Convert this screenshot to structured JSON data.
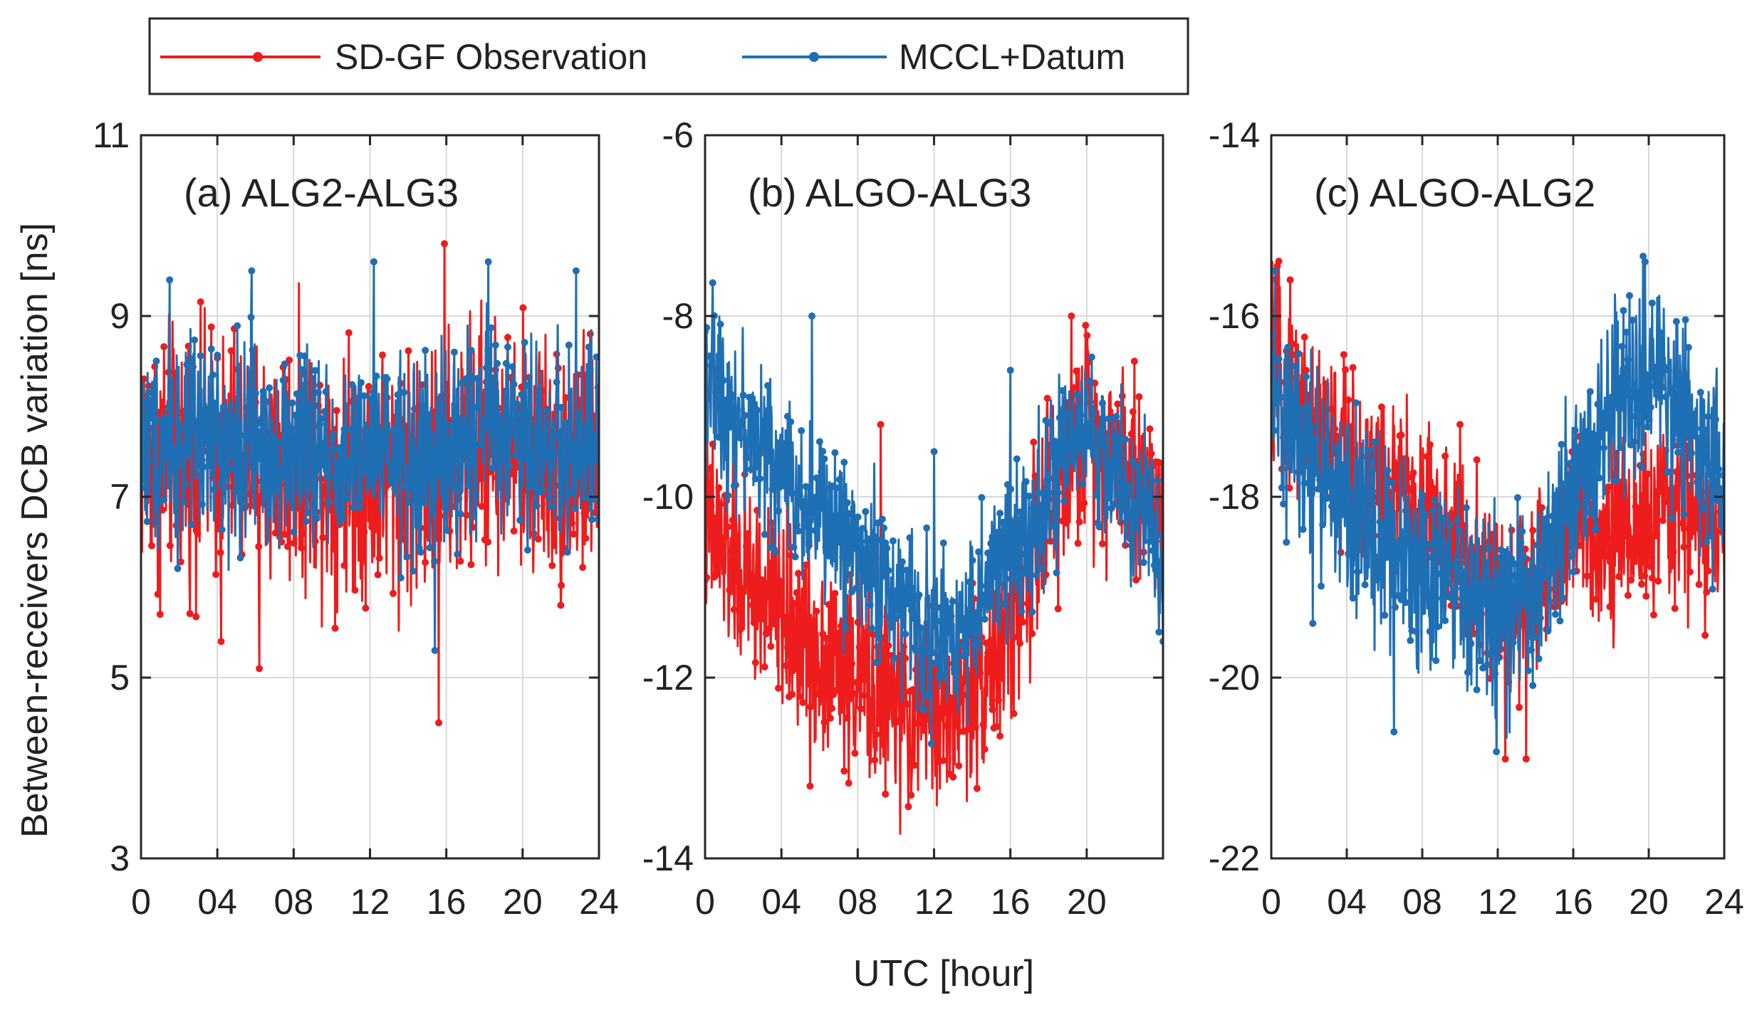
{
  "chart_data": {
    "type": "line",
    "xlabel": "UTC [hour]",
    "ylabel": "Between-receivers DCB variation [ns]",
    "legend": {
      "position": "top-left",
      "entries": [
        {
          "name": "SD-GF Observation",
          "color": "#ee1c1c"
        },
        {
          "name": "MCCL+Datum",
          "color": "#1f6fb4"
        }
      ]
    },
    "grid": true,
    "panels": [
      {
        "label": "(a) ALG2-ALG3",
        "xlim": [
          0,
          24
        ],
        "x_ticks": [
          0,
          4,
          8,
          12,
          16,
          20,
          24
        ],
        "x_tick_labels": [
          "0",
          "04",
          "08",
          "12",
          "16",
          "20",
          "24"
        ],
        "ylim": [
          3,
          11
        ],
        "y_ticks": [
          3,
          5,
          7,
          9,
          11
        ],
        "y_tick_labels": [
          "3",
          "5",
          "7",
          "9",
          "11"
        ],
        "y_axis_side": "left",
        "series": [
          {
            "name": "SD-GF Observation",
            "color": "#ee1c1c",
            "trend": {
              "x": [
                0,
                4,
                8,
                12,
                16,
                18,
                20,
                24
              ],
              "y": [
                7.5,
                7.5,
                7.4,
                7.3,
                7.3,
                7.7,
                7.5,
                7.4
              ]
            },
            "spread": 0.75,
            "outliers": [
              [
                15.6,
                4.5
              ],
              [
                15.9,
                9.8
              ],
              [
                6.2,
                5.1
              ],
              [
                1.0,
                5.7
              ],
              [
                4.2,
                5.4
              ],
              [
                22.0,
                5.8
              ]
            ]
          },
          {
            "name": "MCCL+Datum",
            "color": "#1f6fb4",
            "trend": {
              "x": [
                0,
                4,
                8,
                12,
                16,
                18,
                20,
                24
              ],
              "y": [
                7.6,
                7.6,
                7.5,
                7.4,
                7.4,
                7.9,
                7.6,
                7.5
              ]
            },
            "spread": 0.6,
            "outliers": [
              [
                1.5,
                9.4
              ],
              [
                5.8,
                9.5
              ],
              [
                12.2,
                9.6
              ],
              [
                18.2,
                9.6
              ],
              [
                22.8,
                9.5
              ],
              [
                15.4,
                5.3
              ]
            ]
          }
        ]
      },
      {
        "label": "(b) ALGO-ALG3",
        "xlim": [
          0,
          24
        ],
        "x_ticks": [
          0,
          4,
          8,
          12,
          16,
          20
        ],
        "x_tick_labels": [
          "0",
          "04",
          "08",
          "12",
          "16",
          "20"
        ],
        "ylim": [
          -14,
          -6
        ],
        "y_ticks": [
          -14,
          -12,
          -10,
          -8,
          -6
        ],
        "y_tick_labels": [
          "-14",
          "-12",
          "-10",
          "-8",
          "-6"
        ],
        "y_axis_side": "left",
        "series": [
          {
            "name": "SD-GF Observation",
            "color": "#ee1c1c",
            "trend": {
              "x": [
                0,
                2,
                4,
                6,
                8,
                10,
                12,
                14,
                16,
                18,
                20,
                22,
                24
              ],
              "y": [
                -10.3,
                -10.9,
                -11.3,
                -11.7,
                -12.0,
                -12.3,
                -12.4,
                -12.1,
                -11.4,
                -10.2,
                -9.2,
                -9.6,
                -10.2
              ]
            },
            "spread": 0.6,
            "outliers": [
              [
                5.5,
                -13.2
              ],
              [
                10.8,
                -13.3
              ],
              [
                13.0,
                -13.1
              ],
              [
                9.2,
                -9.2
              ],
              [
                19.2,
                -8.0
              ],
              [
                22.5,
                -8.5
              ]
            ]
          },
          {
            "name": "MCCL+Datum",
            "color": "#1f6fb4",
            "trend": {
              "x": [
                0,
                2,
                4,
                6,
                8,
                10,
                12,
                14,
                16,
                18,
                20,
                22,
                24
              ],
              "y": [
                -8.6,
                -9.2,
                -9.7,
                -10.2,
                -10.6,
                -11.1,
                -11.6,
                -11.3,
                -10.6,
                -9.9,
                -9.3,
                -9.9,
                -10.6
              ]
            },
            "spread": 0.5,
            "outliers": [
              [
                5.6,
                -8.0
              ],
              [
                12.0,
                -9.5
              ],
              [
                16.0,
                -8.6
              ],
              [
                24.0,
                -11.6
              ]
            ]
          }
        ]
      },
      {
        "label": "(c) ALGO-ALG2",
        "xlim": [
          0,
          24
        ],
        "x_ticks": [
          0,
          4,
          8,
          12,
          16,
          20,
          24
        ],
        "x_tick_labels": [
          "0",
          "04",
          "08",
          "12",
          "16",
          "20",
          "24"
        ],
        "ylim": [
          -22,
          -14
        ],
        "y_ticks": [
          -22,
          -20,
          -18,
          -16,
          -14
        ],
        "y_tick_labels": [
          "-22",
          "-20",
          "-18",
          "-16",
          "-14"
        ],
        "y_axis_side": "left",
        "series": [
          {
            "name": "SD-GF Observation",
            "color": "#ee1c1c",
            "trend": {
              "x": [
                0,
                2,
                4,
                6,
                8,
                10,
                12,
                14,
                16,
                18,
                20,
                22,
                24
              ],
              "y": [
                -16.6,
                -17.1,
                -17.6,
                -17.9,
                -18.1,
                -18.6,
                -19.2,
                -19.0,
                -18.3,
                -18.4,
                -18.3,
                -18.1,
                -18.6
              ]
            },
            "spread": 0.55,
            "outliers": [
              [
                12.4,
                -20.9
              ],
              [
                13.5,
                -20.9
              ],
              [
                1.0,
                -15.6
              ],
              [
                10.0,
                -17.2
              ]
            ]
          },
          {
            "name": "MCCL+Datum",
            "color": "#1f6fb4",
            "trend": {
              "x": [
                0,
                2,
                4,
                6,
                8,
                10,
                12,
                14,
                16,
                18,
                20,
                22,
                24
              ],
              "y": [
                -17.0,
                -17.6,
                -18.1,
                -18.5,
                -18.7,
                -19.1,
                -19.4,
                -19.1,
                -18.0,
                -17.0,
                -16.7,
                -17.1,
                -17.8
              ]
            },
            "spread": 0.6,
            "outliers": [
              [
                6.5,
                -20.6
              ],
              [
                2.2,
                -19.4
              ],
              [
                0.2,
                -15.5
              ],
              [
                19.8,
                -15.4
              ]
            ]
          }
        ]
      }
    ]
  }
}
